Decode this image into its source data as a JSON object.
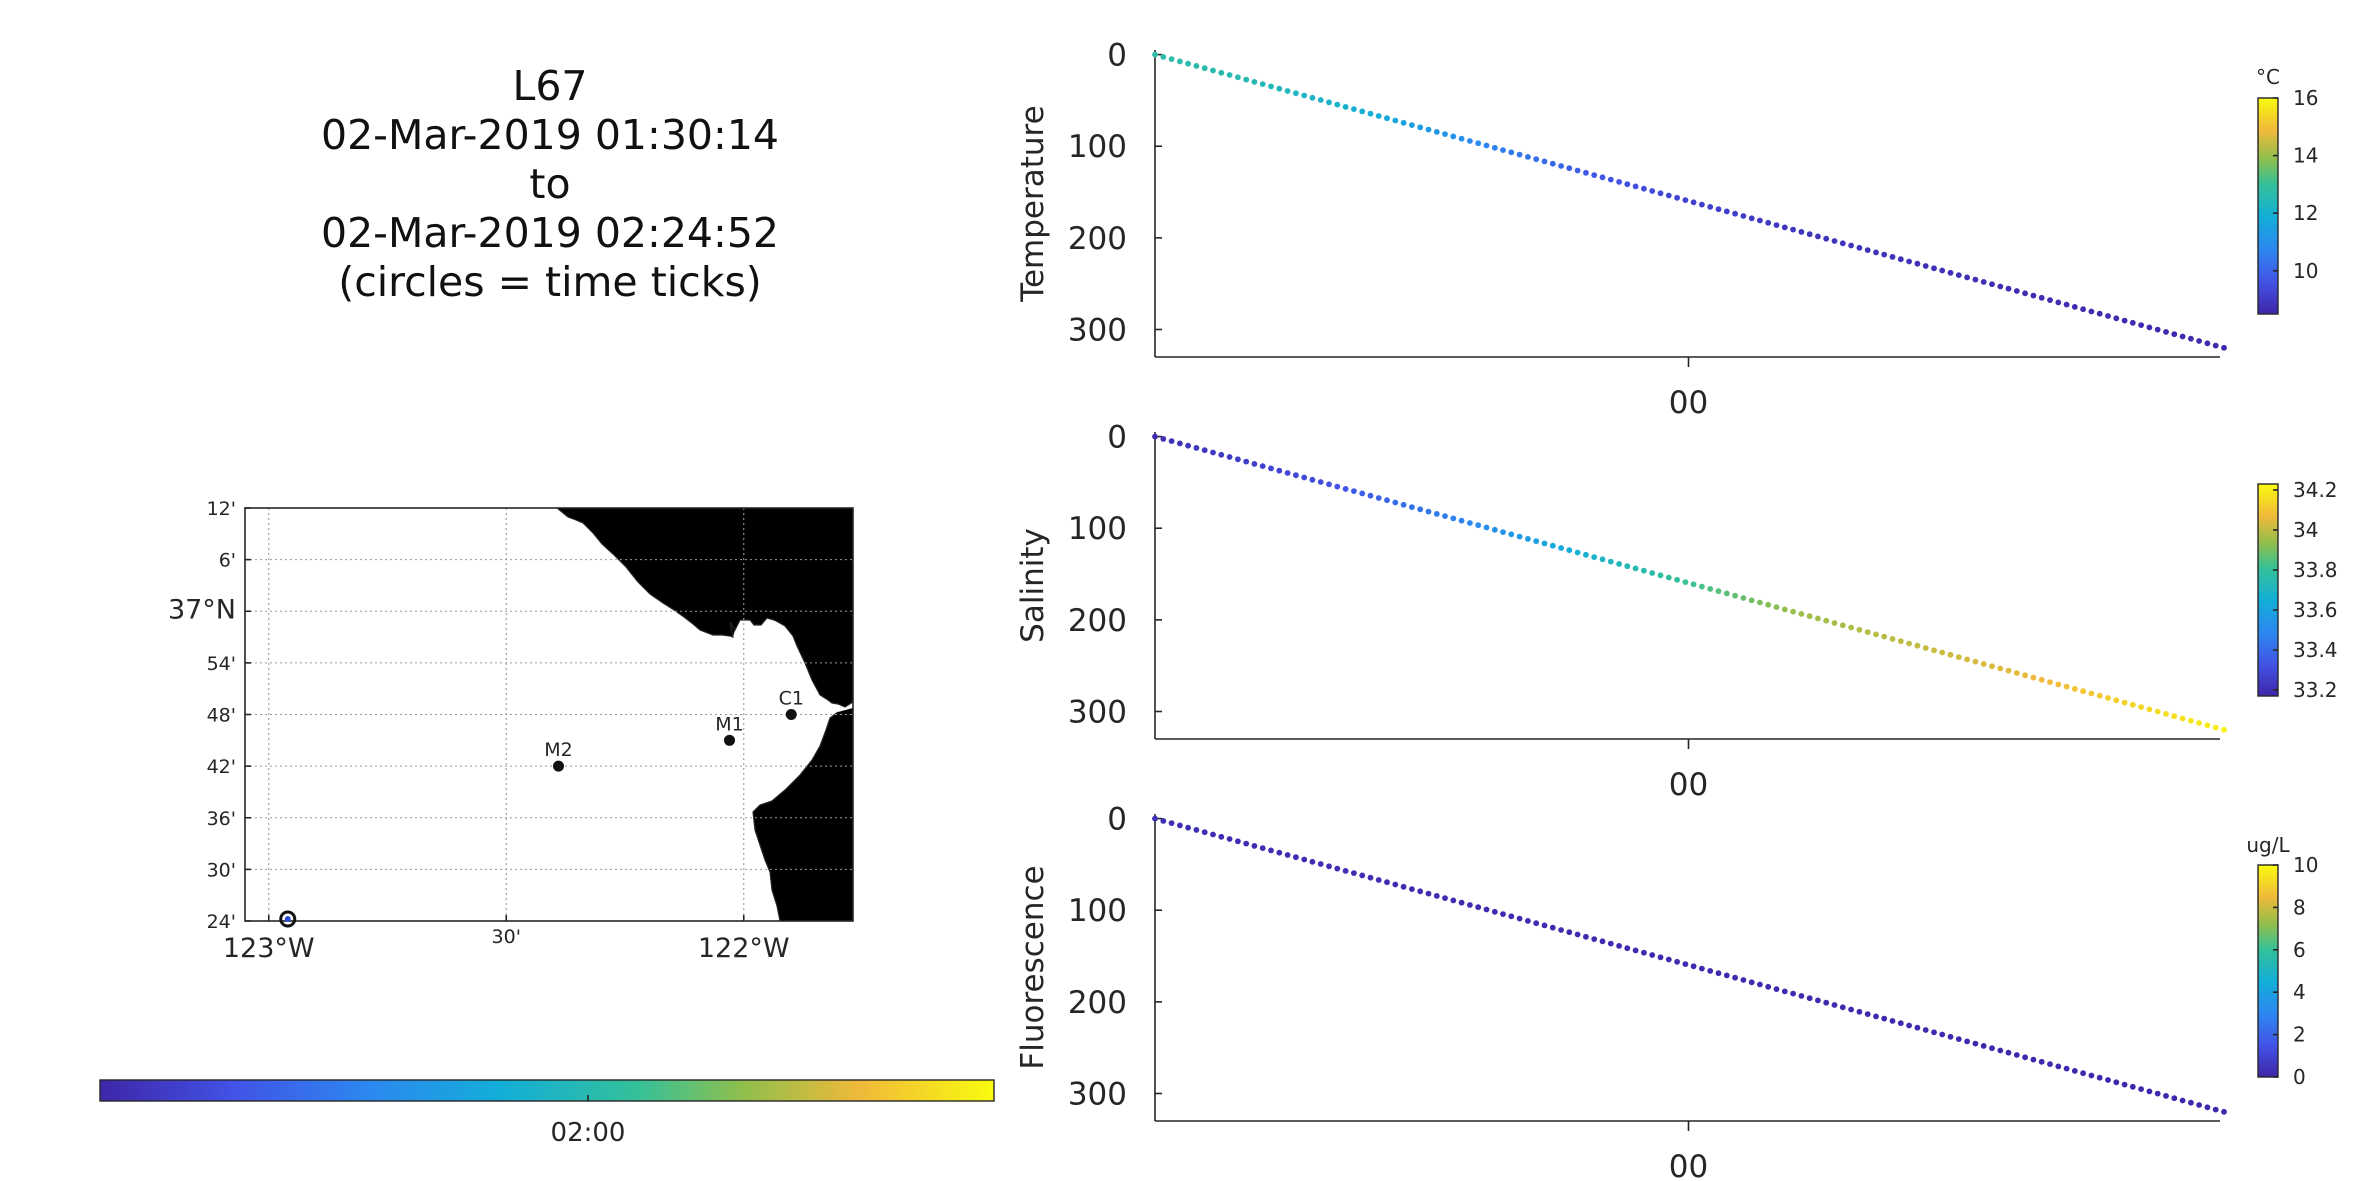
{
  "title": {
    "lines": [
      "L67",
      "02-Mar-2019 01:30:14",
      "to",
      "02-Mar-2019 02:24:52",
      "(circles = time ticks)"
    ]
  },
  "map": {
    "lat_tick_labels": [
      "12'",
      "6'",
      "37°N",
      "54'",
      "48'",
      "42'",
      "36'",
      "30'",
      "24'"
    ],
    "lon_tick_labels": [
      "123°W",
      "30'",
      "122°W"
    ],
    "stations": [
      {
        "name": "M2",
        "lon": -122.39,
        "lat": 36.7
      },
      {
        "name": "M1",
        "lon": -122.03,
        "lat": 36.75
      },
      {
        "name": "C1",
        "lon": -121.9,
        "lat": 36.8
      }
    ],
    "track_start": {
      "lon": -122.96,
      "lat": 36.4
    },
    "land_color": "#e5e5e5"
  },
  "time_colorbar": {
    "tick_label": "02:00"
  },
  "chart_data": [
    {
      "type": "scatter",
      "ylabel": "Temperature",
      "colorbar_unit": "°C",
      "colorbar_ticks": [
        "16",
        "14",
        "12",
        "10"
      ],
      "clim": [
        8.5,
        16
      ],
      "ylim": [
        330,
        -5
      ],
      "yticks": [
        "0",
        "100",
        "200",
        "300"
      ],
      "xtick_label": "00",
      "x_time_range": [
        "01:30:14",
        "02:24:52"
      ],
      "depth_range": [
        0,
        320
      ],
      "value_profile": [
        [
          0,
          12.8
        ],
        [
          0.1,
          12.5
        ],
        [
          0.2,
          11.9
        ],
        [
          0.3,
          10.8
        ],
        [
          0.4,
          9.8
        ],
        [
          0.5,
          9.2
        ],
        [
          0.6,
          8.9
        ],
        [
          0.8,
          8.7
        ],
        [
          1,
          8.6
        ]
      ]
    },
    {
      "type": "scatter",
      "ylabel": "Salinity",
      "colorbar_unit": "",
      "colorbar_ticks": [
        "34.2",
        "34",
        "33.8",
        "33.6",
        "33.4",
        "33.2"
      ],
      "clim": [
        33.17,
        34.23
      ],
      "ylim": [
        330,
        -5
      ],
      "yticks": [
        "0",
        "100",
        "200",
        "300"
      ],
      "xtick_label": "00",
      "x_time_range": [
        "01:30:14",
        "02:24:52"
      ],
      "depth_range": [
        0,
        320
      ],
      "value_profile": [
        [
          0,
          33.2
        ],
        [
          0.15,
          33.3
        ],
        [
          0.3,
          33.5
        ],
        [
          0.45,
          33.75
        ],
        [
          0.6,
          33.95
        ],
        [
          0.8,
          34.05
        ],
        [
          1,
          34.2
        ]
      ]
    },
    {
      "type": "scatter",
      "ylabel": "Fluorescence",
      "colorbar_unit": "ug/L",
      "colorbar_ticks": [
        "10",
        "8",
        "6",
        "4",
        "2",
        "0"
      ],
      "clim": [
        0,
        10
      ],
      "ylim": [
        330,
        -5
      ],
      "yticks": [
        "0",
        "100",
        "200",
        "300"
      ],
      "xtick_label": "00",
      "x_time_range": [
        "01:30:14",
        "02:24:52"
      ],
      "depth_range": [
        0,
        320
      ],
      "value_profile": [
        [
          0,
          0.3
        ],
        [
          0.3,
          0.2
        ],
        [
          1,
          0.1
        ]
      ]
    }
  ]
}
